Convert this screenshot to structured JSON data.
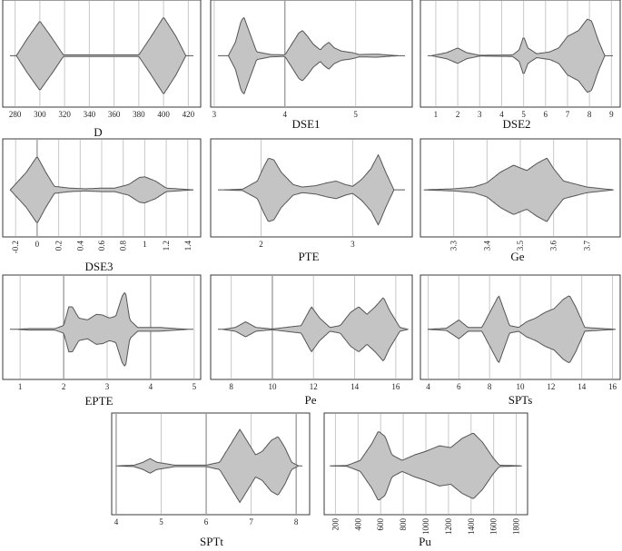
{
  "chart_data": [
    {
      "type": "violin",
      "xlabel": "D",
      "ticks": [
        280,
        300,
        320,
        340,
        360,
        380,
        400,
        420
      ],
      "xlim": [
        270,
        430
      ],
      "strong_ticks": [],
      "range": [
        281,
        418
      ],
      "density": [
        [
          281,
          0
        ],
        [
          290,
          0.45
        ],
        [
          300,
          0.9
        ],
        [
          310,
          0.45
        ],
        [
          319,
          0.02
        ],
        [
          380,
          0.02
        ],
        [
          390,
          0.5
        ],
        [
          400,
          1.0
        ],
        [
          410,
          0.5
        ],
        [
          418,
          0
        ]
      ]
    },
    {
      "type": "violin",
      "xlabel": "DSE1",
      "ticks": [
        3,
        4,
        5
      ],
      "xlim": [
        2.95,
        5.8
      ],
      "strong_ticks": [
        4
      ],
      "range": [
        3.2,
        5.6
      ],
      "density": [
        [
          3.2,
          0
        ],
        [
          3.3,
          0.35
        ],
        [
          3.38,
          0.9
        ],
        [
          3.42,
          1.0
        ],
        [
          3.5,
          0.6
        ],
        [
          3.6,
          0.1
        ],
        [
          3.8,
          0.03
        ],
        [
          4.0,
          0.02
        ],
        [
          4.08,
          0.25
        ],
        [
          4.2,
          0.6
        ],
        [
          4.25,
          0.65
        ],
        [
          4.32,
          0.5
        ],
        [
          4.4,
          0.3
        ],
        [
          4.5,
          0.15
        ],
        [
          4.55,
          0.25
        ],
        [
          4.62,
          0.35
        ],
        [
          4.7,
          0.2
        ],
        [
          4.8,
          0.12
        ],
        [
          4.95,
          0.08
        ],
        [
          5.05,
          0.03
        ],
        [
          5.3,
          0.04
        ],
        [
          5.6,
          0
        ]
      ]
    },
    {
      "type": "violin",
      "xlabel": "DSE2",
      "ticks": [
        1,
        2,
        3,
        4,
        5,
        6,
        7,
        8,
        9
      ],
      "xlim": [
        0.3,
        9.4
      ],
      "strong_ticks": [],
      "range": [
        0.8,
        8.7
      ],
      "density": [
        [
          0.8,
          0
        ],
        [
          1.5,
          0.08
        ],
        [
          2.0,
          0.2
        ],
        [
          2.4,
          0.08
        ],
        [
          3,
          0.01
        ],
        [
          4.5,
          0.02
        ],
        [
          4.8,
          0.15
        ],
        [
          5.0,
          0.5
        ],
        [
          5.2,
          0.2
        ],
        [
          5.6,
          0.05
        ],
        [
          6.2,
          0.1
        ],
        [
          6.6,
          0.2
        ],
        [
          7.0,
          0.5
        ],
        [
          7.5,
          0.65
        ],
        [
          7.9,
          0.95
        ],
        [
          8.1,
          0.9
        ],
        [
          8.4,
          0.4
        ],
        [
          8.7,
          0
        ]
      ]
    },
    {
      "type": "violin",
      "xlabel": "DSE3",
      "ticks": [
        -0.2,
        0,
        0.2,
        0.4,
        0.6,
        0.8,
        1,
        1.2,
        1.4
      ],
      "xlim": [
        -0.32,
        1.52
      ],
      "strong_ticks": [
        0
      ],
      "range": [
        -0.25,
        1.45
      ],
      "density": [
        [
          -0.25,
          0
        ],
        [
          -0.1,
          0.5
        ],
        [
          0,
          0.95
        ],
        [
          0.08,
          0.5
        ],
        [
          0.16,
          0.1
        ],
        [
          0.3,
          0.05
        ],
        [
          0.45,
          0.03
        ],
        [
          0.6,
          0.05
        ],
        [
          0.72,
          0.05
        ],
        [
          0.85,
          0.15
        ],
        [
          0.95,
          0.35
        ],
        [
          1.0,
          0.37
        ],
        [
          1.1,
          0.25
        ],
        [
          1.2,
          0.05
        ],
        [
          1.45,
          0
        ]
      ]
    },
    {
      "type": "violin",
      "xlabel": "PTE",
      "ticks": [
        2,
        3
      ],
      "xlim": [
        1.45,
        3.65
      ],
      "strong_ticks": [],
      "range": [
        1.6,
        3.45
      ],
      "density": [
        [
          1.6,
          0
        ],
        [
          1.8,
          0.02
        ],
        [
          1.96,
          0.25
        ],
        [
          2.02,
          0.6
        ],
        [
          2.08,
          0.9
        ],
        [
          2.14,
          0.85
        ],
        [
          2.22,
          0.5
        ],
        [
          2.35,
          0.15
        ],
        [
          2.45,
          0.08
        ],
        [
          2.6,
          0.12
        ],
        [
          2.72,
          0.2
        ],
        [
          2.82,
          0.25
        ],
        [
          2.92,
          0.15
        ],
        [
          3.0,
          0.1
        ],
        [
          3.1,
          0.3
        ],
        [
          3.2,
          0.6
        ],
        [
          3.28,
          1.0
        ],
        [
          3.36,
          0.5
        ],
        [
          3.45,
          0
        ]
      ]
    },
    {
      "type": "violin",
      "xlabel": "Ge",
      "ticks": [
        3.3,
        3.4,
        3.5,
        3.6,
        3.7
      ],
      "xlim": [
        3.2,
        3.8
      ],
      "strong_ticks": [],
      "range": [
        3.21,
        3.78
      ],
      "density": [
        [
          3.21,
          0
        ],
        [
          3.3,
          0.03
        ],
        [
          3.36,
          0.08
        ],
        [
          3.4,
          0.2
        ],
        [
          3.44,
          0.5
        ],
        [
          3.48,
          0.7
        ],
        [
          3.5,
          0.62
        ],
        [
          3.52,
          0.55
        ],
        [
          3.55,
          0.75
        ],
        [
          3.58,
          0.9
        ],
        [
          3.6,
          0.6
        ],
        [
          3.63,
          0.25
        ],
        [
          3.7,
          0.08
        ],
        [
          3.78,
          0
        ]
      ]
    },
    {
      "type": "violin",
      "xlabel": "EPTE",
      "ticks": [
        1,
        2,
        3,
        4,
        5
      ],
      "xlim": [
        0.6,
        5.15
      ],
      "strong_ticks": [
        2,
        4
      ],
      "range": [
        0.95,
        4.85
      ],
      "density": [
        [
          0.95,
          0
        ],
        [
          1.2,
          0.02
        ],
        [
          1.8,
          0.02
        ],
        [
          2.0,
          0.1
        ],
        [
          2.12,
          0.6
        ],
        [
          2.2,
          0.6
        ],
        [
          2.35,
          0.3
        ],
        [
          2.55,
          0.25
        ],
        [
          2.75,
          0.4
        ],
        [
          2.9,
          0.38
        ],
        [
          3.05,
          0.3
        ],
        [
          3.2,
          0.35
        ],
        [
          3.35,
          0.9
        ],
        [
          3.42,
          1.0
        ],
        [
          3.52,
          0.25
        ],
        [
          3.7,
          0.05
        ],
        [
          4.2,
          0.05
        ],
        [
          4.85,
          0
        ]
      ]
    },
    {
      "type": "violin",
      "xlabel": "Pe",
      "ticks": [
        8,
        10,
        12,
        14,
        16
      ],
      "xlim": [
        7,
        16.8
      ],
      "strong_ticks": [
        10
      ],
      "range": [
        7.6,
        16.6
      ],
      "density": [
        [
          7.6,
          0
        ],
        [
          8.2,
          0.05
        ],
        [
          8.7,
          0.2
        ],
        [
          9.2,
          0.05
        ],
        [
          10,
          0.01
        ],
        [
          11.4,
          0.1
        ],
        [
          11.9,
          0.6
        ],
        [
          12.3,
          0.3
        ],
        [
          12.8,
          0.05
        ],
        [
          13.3,
          0.1
        ],
        [
          13.8,
          0.45
        ],
        [
          14.2,
          0.6
        ],
        [
          14.6,
          0.4
        ],
        [
          15.0,
          0.6
        ],
        [
          15.4,
          0.85
        ],
        [
          15.7,
          0.5
        ],
        [
          16.2,
          0.05
        ],
        [
          16.6,
          0
        ]
      ]
    },
    {
      "type": "violin",
      "xlabel": "SPTs",
      "ticks": [
        4,
        6,
        8,
        10,
        12,
        14,
        16
      ],
      "xlim": [
        3.5,
        16.5
      ],
      "strong_ticks": [],
      "range": [
        4,
        16.2
      ],
      "density": [
        [
          4,
          0
        ],
        [
          5.2,
          0.03
        ],
        [
          6.0,
          0.25
        ],
        [
          6.6,
          0.05
        ],
        [
          7.5,
          0.05
        ],
        [
          8.6,
          0.9
        ],
        [
          9.3,
          0.1
        ],
        [
          9.9,
          0.05
        ],
        [
          10.4,
          0.2
        ],
        [
          11.0,
          0.3
        ],
        [
          11.6,
          0.45
        ],
        [
          12.2,
          0.55
        ],
        [
          12.8,
          0.8
        ],
        [
          13.2,
          0.9
        ],
        [
          13.6,
          0.6
        ],
        [
          14.2,
          0.05
        ],
        [
          15,
          0.03
        ],
        [
          16.2,
          0
        ]
      ]
    },
    {
      "type": "violin",
      "xlabel": "SPTt",
      "ticks": [
        4,
        5,
        6,
        7,
        8
      ],
      "xlim": [
        3.9,
        8.3
      ],
      "strong_ticks": [
        4,
        6,
        8
      ],
      "range": [
        4.0,
        8.05
      ],
      "density": [
        [
          4.0,
          0
        ],
        [
          4.4,
          0.02
        ],
        [
          4.6,
          0.1
        ],
        [
          4.75,
          0.2
        ],
        [
          4.9,
          0.1
        ],
        [
          5.3,
          0.02
        ],
        [
          6.0,
          0.02
        ],
        [
          6.3,
          0.1
        ],
        [
          6.55,
          0.6
        ],
        [
          6.75,
          1.0
        ],
        [
          6.95,
          0.6
        ],
        [
          7.1,
          0.3
        ],
        [
          7.25,
          0.4
        ],
        [
          7.45,
          0.7
        ],
        [
          7.6,
          0.8
        ],
        [
          7.75,
          0.5
        ],
        [
          7.9,
          0.1
        ],
        [
          8.05,
          0
        ]
      ]
    },
    {
      "type": "violin",
      "xlabel": "Pu",
      "ticks": [
        200,
        400,
        600,
        800,
        1000,
        1200,
        1400,
        1600,
        1800
      ],
      "xlim": [
        100,
        1900
      ],
      "strong_ticks": [],
      "range": [
        150,
        1850
      ],
      "density": [
        [
          150,
          0
        ],
        [
          300,
          0.01
        ],
        [
          420,
          0.15
        ],
        [
          520,
          0.6
        ],
        [
          580,
          0.95
        ],
        [
          640,
          0.8
        ],
        [
          700,
          0.3
        ],
        [
          790,
          0.15
        ],
        [
          900,
          0.3
        ],
        [
          1000,
          0.4
        ],
        [
          1120,
          0.55
        ],
        [
          1220,
          0.5
        ],
        [
          1320,
          0.75
        ],
        [
          1420,
          0.9
        ],
        [
          1500,
          0.65
        ],
        [
          1600,
          0.2
        ],
        [
          1650,
          0.02
        ],
        [
          1850,
          0
        ]
      ]
    }
  ]
}
